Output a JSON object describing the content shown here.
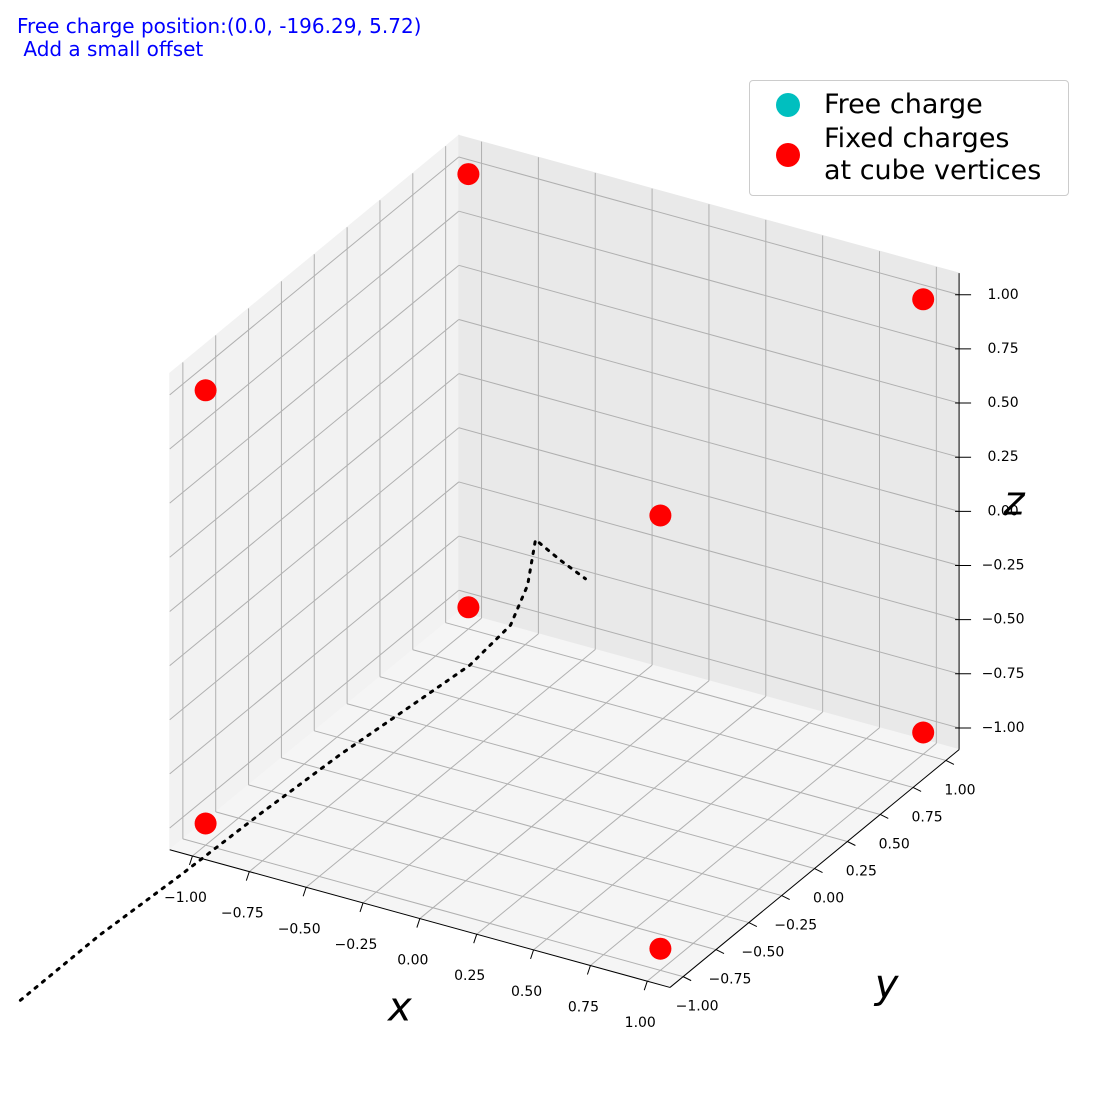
{
  "chart_data": {
    "type": "scatter3d",
    "title": "Free charge position:(0.0, -196.29, 5.72)\n Add a small offset",
    "xlabel": "x",
    "ylabel": "y",
    "zlabel": "z",
    "xlim": [
      -1.1,
      1.1
    ],
    "ylim": [
      -1.1,
      1.1
    ],
    "zlim": [
      -1.1,
      1.1
    ],
    "xticks": [
      {
        "value": -1,
        "label": "−1.00"
      },
      {
        "value": -0.75,
        "label": "−0.75"
      },
      {
        "value": -0.5,
        "label": "−0.50"
      },
      {
        "value": -0.25,
        "label": "−0.25"
      },
      {
        "value": 0,
        "label": "0.00"
      },
      {
        "value": 0.25,
        "label": "0.25"
      },
      {
        "value": 0.5,
        "label": "0.50"
      },
      {
        "value": 0.75,
        "label": "0.75"
      },
      {
        "value": 1,
        "label": "1.00"
      }
    ],
    "yticks": [
      {
        "value": -1,
        "label": "−1.00"
      },
      {
        "value": -0.75,
        "label": "−0.75"
      },
      {
        "value": -0.5,
        "label": "−0.50"
      },
      {
        "value": -0.25,
        "label": "−0.25"
      },
      {
        "value": 0,
        "label": "0.00"
      },
      {
        "value": 0.25,
        "label": "0.25"
      },
      {
        "value": 0.5,
        "label": "0.50"
      },
      {
        "value": 0.75,
        "label": "0.75"
      },
      {
        "value": 1,
        "label": "1.00"
      }
    ],
    "zticks": [
      {
        "value": -1,
        "label": "−1.00"
      },
      {
        "value": -0.75,
        "label": "−0.75"
      },
      {
        "value": -0.5,
        "label": "−0.50"
      },
      {
        "value": -0.25,
        "label": "−0.25"
      },
      {
        "value": 0,
        "label": "0.00"
      },
      {
        "value": 0.25,
        "label": "0.25"
      },
      {
        "value": 0.5,
        "label": "0.50"
      },
      {
        "value": 0.75,
        "label": "0.75"
      },
      {
        "value": 1,
        "label": "1.00"
      }
    ],
    "grid": true,
    "legend": "upper right",
    "series": [
      {
        "name": "Free charge",
        "color": "#00bfbf",
        "x": [],
        "y": [],
        "z": []
      },
      {
        "name": "Fixed charges\nat cube vertices",
        "color": "#ff0000",
        "x": [
          -1,
          1,
          -1,
          1,
          -1,
          1,
          -1,
          1
        ],
        "y": [
          1,
          1,
          -1,
          -1,
          1,
          1,
          -1,
          -1
        ],
        "z": [
          1,
          1,
          1,
          1,
          -1,
          -1,
          -1,
          -1
        ]
      }
    ],
    "trajectory": {
      "color": "#000000",
      "x": [
        0,
        0,
        0,
        0,
        0,
        0,
        0,
        0,
        0,
        0,
        0,
        0
      ],
      "y": [
        -4.14,
        -3.54,
        -2.93,
        -2.32,
        -1.71,
        -1.1,
        -0.72,
        -0.41,
        -0.28,
        -0.22,
        -0.03,
        0.16
      ],
      "z": [
        0.04,
        0.04,
        0.01,
        -0.01,
        -0.04,
        -0.09,
        -0.12,
        -0.09,
        0.03,
        0.21,
        0.02,
        -0.16
      ]
    }
  }
}
